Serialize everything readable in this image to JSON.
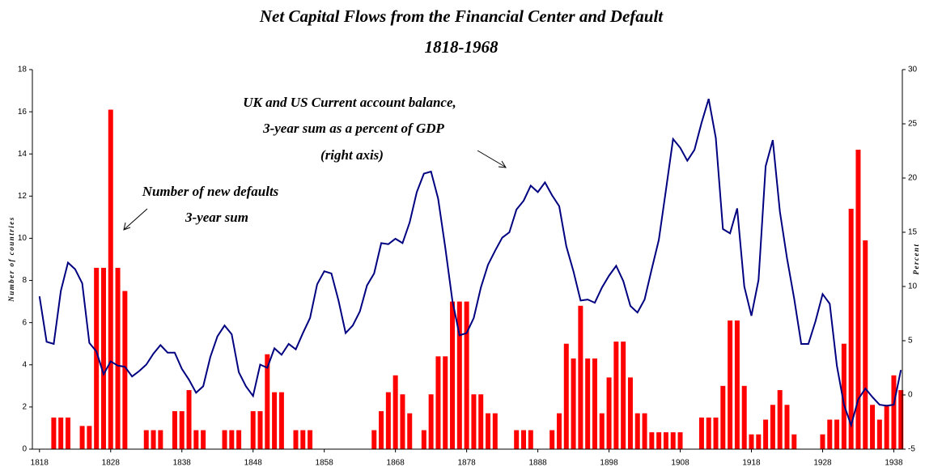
{
  "chart_data": {
    "type": "bar",
    "title": "Net Capital Flows from the Financial Center and Default",
    "subtitle": "1818-1968",
    "annotations": [
      {
        "lines": [
          "UK  and US Current account  balance,",
          "3-year sum as a percent of GDP",
          "(right axis)"
        ]
      },
      {
        "lines": [
          "Number of new defaults",
          "3-year sum"
        ]
      }
    ],
    "ylabel": "Number of countries",
    "y2label": "Percent",
    "x": [
      1818,
      1819,
      1820,
      1821,
      1822,
      1823,
      1824,
      1825,
      1826,
      1827,
      1828,
      1829,
      1830,
      1831,
      1832,
      1833,
      1834,
      1835,
      1836,
      1837,
      1838,
      1839,
      1840,
      1841,
      1842,
      1843,
      1844,
      1845,
      1846,
      1847,
      1848,
      1849,
      1850,
      1851,
      1852,
      1853,
      1854,
      1855,
      1856,
      1857,
      1858,
      1859,
      1860,
      1861,
      1862,
      1863,
      1864,
      1865,
      1866,
      1867,
      1868,
      1869,
      1870,
      1871,
      1872,
      1873,
      1874,
      1875,
      1876,
      1877,
      1878,
      1879,
      1880,
      1881,
      1882,
      1883,
      1884,
      1885,
      1886,
      1887,
      1888,
      1889,
      1890,
      1891,
      1892,
      1893,
      1894,
      1895,
      1896,
      1897,
      1898,
      1899,
      1900,
      1901,
      1902,
      1903,
      1904,
      1905,
      1906,
      1907,
      1908,
      1909,
      1910,
      1911,
      1912,
      1913,
      1914,
      1915,
      1916,
      1917,
      1918,
      1919,
      1920,
      1921,
      1922,
      1923,
      1924,
      1925,
      1926,
      1927,
      1928,
      1929,
      1930,
      1931,
      1932,
      1933,
      1934,
      1935,
      1936,
      1937,
      1938,
      1939
    ],
    "xlim": [
      1817,
      1939.2
    ],
    "xticks": [
      1818,
      1828,
      1838,
      1848,
      1858,
      1868,
      1878,
      1888,
      1898,
      1908,
      1918,
      1928,
      1938
    ],
    "ylim": [
      0,
      18
    ],
    "yticks": [
      0,
      2,
      4,
      6,
      8,
      10,
      12,
      14,
      16,
      18
    ],
    "y2lim": [
      -5,
      30
    ],
    "y2ticks": [
      -5,
      0,
      5,
      10,
      15,
      20,
      25,
      30
    ],
    "series": [
      {
        "type": "bar",
        "color": "#ff0000",
        "axis": "y",
        "values": [
          0,
          0,
          1.5,
          1.5,
          1.5,
          0,
          1.1,
          1.1,
          8.6,
          8.6,
          16.1,
          8.6,
          7.5,
          0,
          0,
          0.9,
          0.9,
          0.9,
          0,
          1.8,
          1.8,
          2.8,
          0.9,
          0.9,
          0,
          0,
          0.9,
          0.9,
          0.9,
          0,
          1.8,
          1.8,
          4.5,
          2.7,
          2.7,
          0,
          0.9,
          0.9,
          0.9,
          0,
          0,
          0,
          0,
          0,
          0,
          0,
          0,
          0.9,
          1.8,
          2.7,
          3.5,
          2.6,
          1.7,
          0,
          0.9,
          2.6,
          4.4,
          4.4,
          7,
          7,
          7,
          2.6,
          2.6,
          1.7,
          1.7,
          0,
          0,
          0.9,
          0.9,
          0.9,
          0,
          0,
          0.9,
          1.7,
          5,
          4.3,
          6.8,
          4.3,
          4.3,
          1.7,
          3.4,
          5.1,
          5.1,
          3.4,
          1.7,
          1.7,
          0.8,
          0.8,
          0.8,
          0.8,
          0.8,
          0,
          0,
          1.5,
          1.5,
          1.5,
          3,
          6.1,
          6.1,
          3,
          0.7,
          0.7,
          1.4,
          2.1,
          2.8,
          2.1,
          0.7,
          0,
          0,
          0,
          0.7,
          1.4,
          1.4,
          5,
          11.4,
          14.2,
          9.9,
          2.1,
          1.4,
          2.1,
          3.5,
          2.8
        ]
      },
      {
        "type": "line",
        "color": "#000080",
        "axis": "y2",
        "values": [
          9.1,
          4.9,
          4.7,
          9.6,
          12.2,
          11.6,
          10.3,
          4.8,
          4.0,
          1.9,
          3.1,
          2.7,
          2.6,
          1.7,
          2.2,
          2.8,
          3.8,
          4.6,
          3.9,
          3.9,
          2.4,
          1.4,
          0.2,
          0.8,
          3.5,
          5.4,
          6.4,
          5.6,
          2.1,
          0.8,
          -0.1,
          2.8,
          2.5,
          4.3,
          3.7,
          4.7,
          4.2,
          5.7,
          7.1,
          10.2,
          11.4,
          11.2,
          8.7,
          5.7,
          6.4,
          7.7,
          10.1,
          11.2,
          14.0,
          13.9,
          14.4,
          14.0,
          15.9,
          18.7,
          20.4,
          20.6,
          18.1,
          13.6,
          8.7,
          5.5,
          5.7,
          7.1,
          9.9,
          12.0,
          13.3,
          14.5,
          15.0,
          17.1,
          17.9,
          19.3,
          18.7,
          19.6,
          18.4,
          17.4,
          13.7,
          11.4,
          8.7,
          8.8,
          8.5,
          9.9,
          11.0,
          11.9,
          10.5,
          8.2,
          7.6,
          8.8,
          11.6,
          14.3,
          18.9,
          23.6,
          22.8,
          21.6,
          22.6,
          25.1,
          27.3,
          23.7,
          15.3,
          14.9,
          17.2,
          10.0,
          7.3,
          10.6,
          21.1,
          23.5,
          16.9,
          12.6,
          8.9,
          4.7,
          4.7,
          6.8,
          9.3,
          8.4,
          2.7,
          -0.9,
          -2.8,
          -0.4,
          0.6,
          -0.2,
          -0.9,
          -1.0,
          -0.9,
          2.3
        ]
      }
    ]
  }
}
